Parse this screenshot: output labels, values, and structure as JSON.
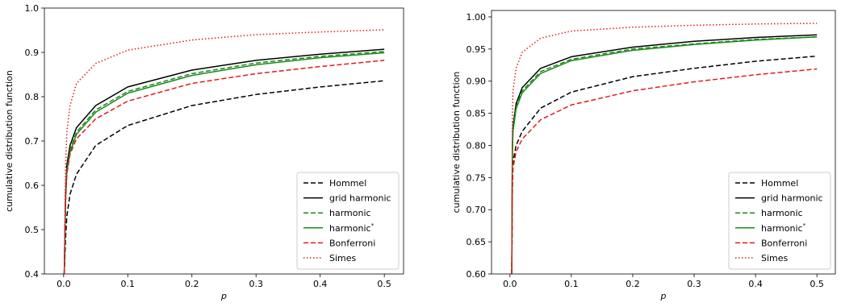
{
  "chart_data": [
    {
      "type": "line",
      "xlabel": "p",
      "ylabel": "cumulative distribution function",
      "xlim": [
        -0.03,
        0.53
      ],
      "ylim": [
        0.4,
        1.0
      ],
      "xticks": [
        0.0,
        0.1,
        0.2,
        0.3,
        0.4,
        0.5
      ],
      "xtick_labels": [
        "0.0",
        "0.1",
        "0.2",
        "0.3",
        "0.4",
        "0.5"
      ],
      "yticks": [
        0.4,
        0.5,
        0.6,
        0.7,
        0.8,
        0.9,
        1.0
      ],
      "ytick_labels": [
        "0.4",
        "0.5",
        "0.6",
        "0.7",
        "0.8",
        "0.9",
        "1.0"
      ],
      "legend_position": "lower-right",
      "x": [
        0.001,
        0.003,
        0.005,
        0.01,
        0.02,
        0.05,
        0.1,
        0.2,
        0.3,
        0.4,
        0.5
      ],
      "series": [
        {
          "name": "Hommel",
          "color": "#000000",
          "dash": "dashed",
          "values": [
            0.4,
            0.48,
            0.53,
            0.58,
            0.625,
            0.69,
            0.735,
            0.78,
            0.805,
            0.822,
            0.836
          ]
        },
        {
          "name": "grid harmonic",
          "color": "#000000",
          "dash": "solid",
          "values": [
            0.4,
            0.58,
            0.645,
            0.69,
            0.73,
            0.78,
            0.822,
            0.86,
            0.882,
            0.896,
            0.907
          ]
        },
        {
          "name": "harmonic",
          "color": "#1a8a1a",
          "dash": "dashed",
          "values": [
            0.4,
            0.57,
            0.635,
            0.68,
            0.72,
            0.77,
            0.812,
            0.852,
            0.876,
            0.891,
            0.902
          ]
        },
        {
          "name": "harmonic*",
          "color": "#1a8a1a",
          "dash": "solid",
          "values": [
            0.4,
            0.565,
            0.63,
            0.675,
            0.715,
            0.765,
            0.808,
            0.848,
            0.872,
            0.888,
            0.899
          ]
        },
        {
          "name": "Bonferroni",
          "color": "#e41a1c",
          "dash": "dashed",
          "values": [
            0.4,
            0.56,
            0.625,
            0.67,
            0.705,
            0.75,
            0.79,
            0.83,
            0.852,
            0.868,
            0.882
          ]
        },
        {
          "name": "Simes",
          "color": "#e41a1c",
          "dash": "dotted",
          "values": [
            0.4,
            0.64,
            0.72,
            0.78,
            0.83,
            0.875,
            0.905,
            0.928,
            0.94,
            0.946,
            0.951
          ]
        }
      ]
    },
    {
      "type": "line",
      "xlabel": "p",
      "ylabel": "cumulative distribution function",
      "xlim": [
        -0.03,
        0.53
      ],
      "ylim": [
        0.6,
        1.01
      ],
      "xticks": [
        0.0,
        0.1,
        0.2,
        0.3,
        0.4,
        0.5
      ],
      "xtick_labels": [
        "0.0",
        "0.1",
        "0.2",
        "0.3",
        "0.4",
        "0.5"
      ],
      "yticks": [
        0.6,
        0.65,
        0.7,
        0.75,
        0.8,
        0.85,
        0.9,
        0.95,
        1.0
      ],
      "ytick_labels": [
        "0.60",
        "0.65",
        "0.70",
        "0.75",
        "0.80",
        "0.85",
        "0.90",
        "0.95",
        "1.00"
      ],
      "legend_position": "lower-right",
      "x": [
        0.003,
        0.004,
        0.005,
        0.01,
        0.02,
        0.05,
        0.1,
        0.2,
        0.3,
        0.4,
        0.5
      ],
      "series": [
        {
          "name": "Hommel",
          "color": "#000000",
          "dash": "dashed",
          "values": [
            0.6,
            0.74,
            0.775,
            0.8,
            0.822,
            0.858,
            0.883,
            0.907,
            0.92,
            0.931,
            0.939
          ]
        },
        {
          "name": "grid harmonic",
          "color": "#000000",
          "dash": "solid",
          "values": [
            0.6,
            0.8,
            0.83,
            0.865,
            0.89,
            0.92,
            0.938,
            0.953,
            0.962,
            0.968,
            0.972
          ]
        },
        {
          "name": "harmonic",
          "color": "#1a8a1a",
          "dash": "dashed",
          "values": [
            0.6,
            0.795,
            0.825,
            0.86,
            0.885,
            0.915,
            0.934,
            0.95,
            0.958,
            0.965,
            0.969
          ]
        },
        {
          "name": "harmonic*",
          "color": "#1a8a1a",
          "dash": "solid",
          "values": [
            0.6,
            0.79,
            0.822,
            0.857,
            0.882,
            0.912,
            0.932,
            0.948,
            0.957,
            0.964,
            0.969
          ]
        },
        {
          "name": "Bonferroni",
          "color": "#e41a1c",
          "dash": "dashed",
          "values": [
            0.6,
            0.73,
            0.765,
            0.79,
            0.81,
            0.84,
            0.863,
            0.885,
            0.899,
            0.91,
            0.919
          ]
        },
        {
          "name": "Simes",
          "color": "#e41a1c",
          "dash": "dotted",
          "values": [
            0.6,
            0.85,
            0.885,
            0.92,
            0.945,
            0.967,
            0.978,
            0.984,
            0.987,
            0.989,
            0.99
          ]
        }
      ]
    }
  ]
}
